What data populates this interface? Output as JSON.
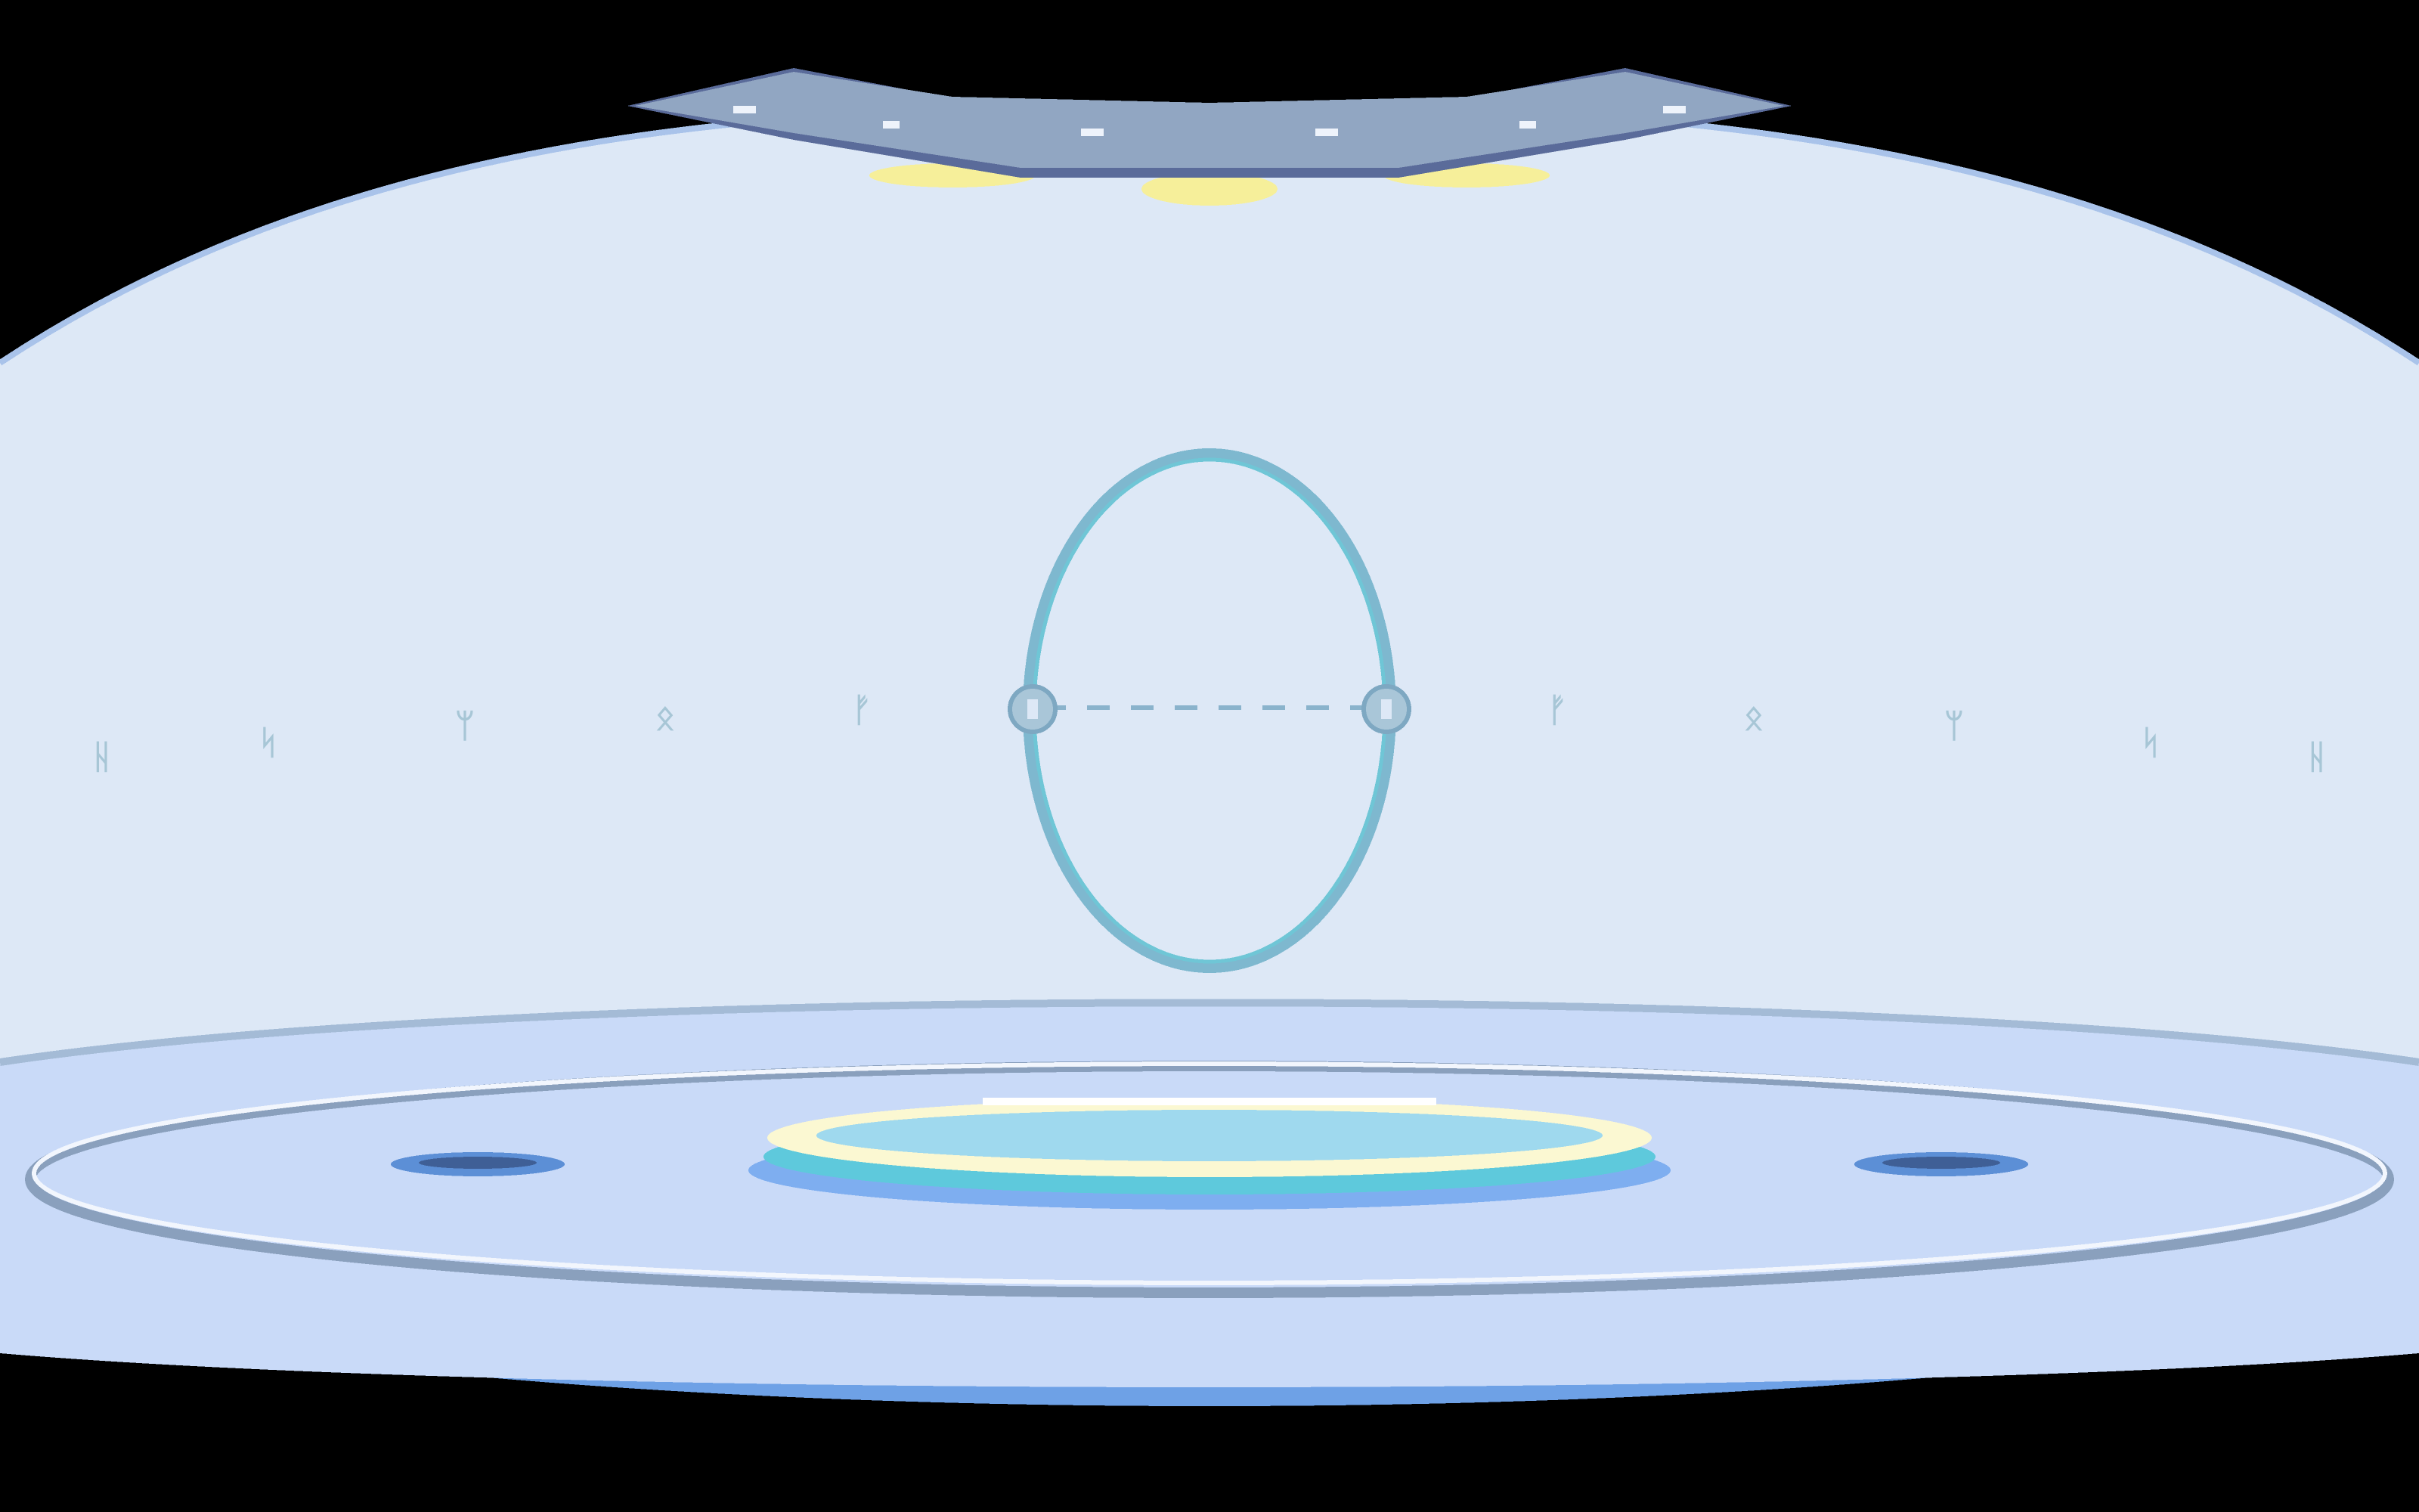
{
  "scene": {
    "name": "portal-chamber",
    "background_color": "#000000",
    "dome_color": "#dde8f6",
    "dome_edge_color": "#a9c3ea",
    "floor_color": "#c9daf8",
    "floor_ring_color": "#94a9c2",
    "floor_base_color": "#6ea1e6"
  },
  "ceiling": {
    "fixture_color": "#91a6c2",
    "fixture_shadow_color": "#5a6b9a",
    "light_color": "#f6ef9a"
  },
  "portal": {
    "ring_color": "#7eb8cf",
    "ring_inner_color": "#6fc6d6",
    "node_color": "#a9c6d8"
  },
  "wall_glyphs": {
    "color": "#a7c6d6",
    "left": [
      "ᚺ",
      "ᛋ",
      "ᛘ",
      "ᛟ",
      "ᚠ"
    ],
    "right": [
      "ᚠ",
      "ᛟ",
      "ᛘ",
      "ᛋ",
      "ᚺ"
    ]
  },
  "pool": {
    "water_color": "#5ec9dc",
    "rim_color": "#fbf8d2",
    "surface_color": "#9fd9ee"
  },
  "vents": {
    "color": "#5c8fd6"
  }
}
